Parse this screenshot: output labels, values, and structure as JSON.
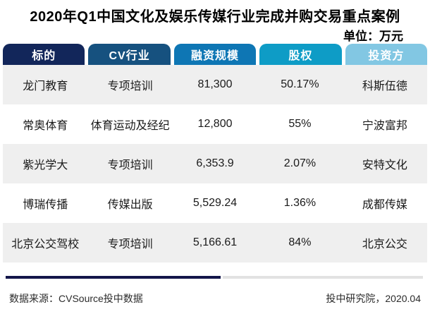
{
  "chart_data": {
    "type": "table",
    "title": "2020年Q1中国文化及娱乐传媒行业完成并购交易重点案例",
    "unit_label": "单位：万元",
    "columns": [
      {
        "label": "标的",
        "color": "#12265A"
      },
      {
        "label": "CV行业",
        "color": "#16517F"
      },
      {
        "label": "融资规模",
        "color": "#0E76B4"
      },
      {
        "label": "股权",
        "color": "#0E9CC6"
      },
      {
        "label": "投资方",
        "color": "#82C7E3"
      }
    ],
    "rows": [
      [
        "龙门教育",
        "专项培训",
        "81,300",
        "50.17%",
        "科斯伍德"
      ],
      [
        "常奥体育",
        "体育运动及经纪",
        "12,800",
        "55%",
        "宁波富邦"
      ],
      [
        "紫光学大",
        "专项培训",
        "6,353.9",
        "2.07%",
        "安特文化"
      ],
      [
        "博瑞传播",
        "传媒出版",
        "5,529.24",
        "1.36%",
        "成都传媒"
      ],
      [
        "北京公交驾校",
        "专项培训",
        "5,166.61",
        "84%",
        "北京公交"
      ]
    ],
    "footer": {
      "source": "数据来源：CVSource投中数据",
      "credit": "投中研究院，2020.04"
    }
  },
  "colors": {
    "header_text": "#FFFFFF",
    "row_alt_bg": "#EFEFEF",
    "divider_navy": "#13164A",
    "divider_gray": "#E2E2E2"
  }
}
